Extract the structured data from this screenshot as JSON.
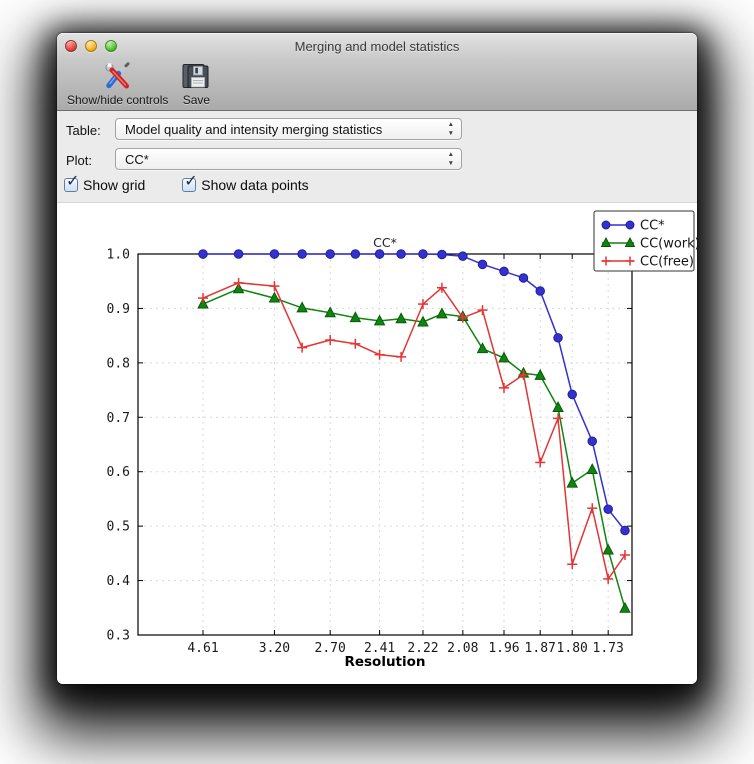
{
  "window": {
    "title": "Merging and model statistics",
    "traffic_lights": [
      "close",
      "minimize",
      "zoom"
    ]
  },
  "toolbar": {
    "buttons": [
      {
        "label": "Show/hide controls",
        "icon": "tools-icon"
      },
      {
        "label": "Save",
        "icon": "save-icon"
      }
    ]
  },
  "controls": {
    "table_label": "Table:",
    "table_value": "Model quality and intensity merging statistics",
    "plot_label": "Plot:",
    "plot_value": "CC*",
    "checkboxes": [
      {
        "label": "Show grid",
        "checked": true
      },
      {
        "label": "Show data points",
        "checked": true
      }
    ]
  },
  "chart_data": {
    "type": "line",
    "title": "CC*",
    "xlabel": "Resolution",
    "x_axis_note": "x positions proportional to 1/d^2 (reciprocal resolution squared), high d at left",
    "resolutions_A": [
      4.61,
      3.72,
      3.2,
      2.92,
      2.7,
      2.54,
      2.41,
      2.31,
      2.22,
      2.15,
      2.08,
      2.02,
      1.96,
      1.91,
      1.87,
      1.83,
      1.8,
      1.76,
      1.73,
      1.7
    ],
    "x_tick_indices": [
      0,
      2,
      4,
      6,
      8,
      10,
      12,
      14,
      16,
      18
    ],
    "x_tick_labels": [
      "4.61",
      "3.20",
      "2.70",
      "2.41",
      "2.22",
      "2.08",
      "1.96",
      "1.87",
      "1.80",
      "1.73"
    ],
    "xlim_inv_d2": [
      0.001,
      0.351
    ],
    "ylim": [
      0.3,
      1.0
    ],
    "y_ticks": [
      0.3,
      0.4,
      0.5,
      0.6,
      0.7,
      0.8,
      0.9,
      1.0
    ],
    "grid": true,
    "grid_color": "#d9d9d9",
    "legend_position": "upper right",
    "series": [
      {
        "name": "CC*",
        "color": "#3431cd",
        "edge_color": "#1c1c96",
        "marker": "circle",
        "values": [
          1.0,
          1.0,
          1.0,
          1.0,
          1.0,
          1.0,
          1.0,
          1.0,
          1.0,
          0.999,
          0.996,
          0.981,
          0.968,
          0.956,
          0.932,
          0.846,
          0.742,
          0.656,
          0.531,
          0.492
        ]
      },
      {
        "name": "CC(work)",
        "color": "#108410",
        "edge_color": "#055505",
        "marker": "triangle",
        "values": [
          0.908,
          0.936,
          0.919,
          0.901,
          0.892,
          0.883,
          0.877,
          0.881,
          0.875,
          0.89,
          0.885,
          0.826,
          0.809,
          0.781,
          0.777,
          0.718,
          0.579,
          0.604,
          0.456,
          0.349
        ]
      },
      {
        "name": "CC(free)",
        "color": "#e43434",
        "edge_color": "#d01616",
        "marker": "plus",
        "values": [
          0.919,
          0.947,
          0.941,
          0.828,
          0.842,
          0.835,
          0.815,
          0.811,
          0.908,
          0.938,
          0.883,
          0.897,
          0.754,
          0.778,
          0.617,
          0.698,
          0.43,
          0.533,
          0.403,
          0.447
        ]
      }
    ]
  }
}
